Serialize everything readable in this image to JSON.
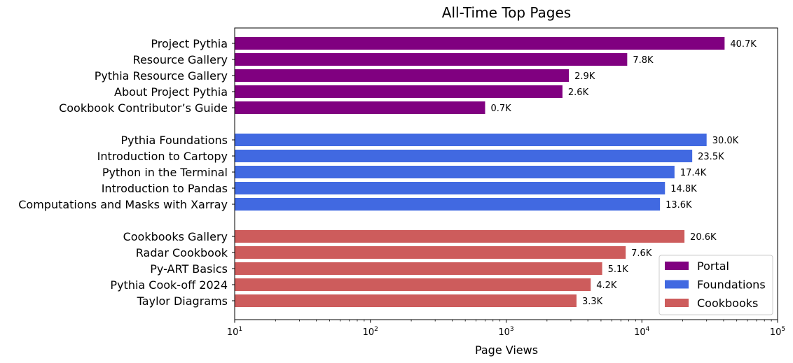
{
  "chart_data": {
    "type": "bar",
    "orientation": "horizontal",
    "title": "All-Time Top Pages",
    "xlabel": "Page Views",
    "ylabel": "",
    "xscale": "log",
    "xlim": [
      10,
      100000
    ],
    "xticks": [
      {
        "value": 10,
        "base": "10",
        "exp": "1"
      },
      {
        "value": 100,
        "base": "10",
        "exp": "2"
      },
      {
        "value": 1000,
        "base": "10",
        "exp": "3"
      },
      {
        "value": 10000,
        "base": "10",
        "exp": "4"
      },
      {
        "value": 100000,
        "base": "10",
        "exp": "5"
      }
    ],
    "grid": false,
    "legend_position": "bottom-right",
    "series": [
      {
        "name": "Portal",
        "color": "#800080",
        "items": [
          {
            "label": "Project Pythia",
            "value": 40700,
            "display": "40.7K"
          },
          {
            "label": "Resource Gallery",
            "value": 7800,
            "display": "7.8K"
          },
          {
            "label": "Pythia Resource Gallery",
            "value": 2900,
            "display": "2.9K"
          },
          {
            "label": "About Project Pythia",
            "value": 2600,
            "display": "2.6K"
          },
          {
            "label": "Cookbook Contributor’s Guide",
            "value": 700,
            "display": "0.7K"
          }
        ]
      },
      {
        "name": "Foundations",
        "color": "#4169e1",
        "items": [
          {
            "label": "Pythia Foundations",
            "value": 30000,
            "display": "30.0K"
          },
          {
            "label": "Introduction to Cartopy",
            "value": 23500,
            "display": "23.5K"
          },
          {
            "label": "Python in the Terminal",
            "value": 17400,
            "display": "17.4K"
          },
          {
            "label": "Introduction to Pandas",
            "value": 14800,
            "display": "14.8K"
          },
          {
            "label": "Computations and Masks with Xarray",
            "value": 13600,
            "display": "13.6K"
          }
        ]
      },
      {
        "name": "Cookbooks",
        "color": "#cd5c5c",
        "items": [
          {
            "label": "Cookbooks Gallery",
            "value": 20600,
            "display": "20.6K"
          },
          {
            "label": "Radar Cookbook",
            "value": 7600,
            "display": "7.6K"
          },
          {
            "label": "Py-ART Basics",
            "value": 5100,
            "display": "5.1K"
          },
          {
            "label": "Pythia Cook-off 2024",
            "value": 4200,
            "display": "4.2K"
          },
          {
            "label": "Taylor Diagrams",
            "value": 3300,
            "display": "3.3K"
          }
        ]
      }
    ]
  }
}
